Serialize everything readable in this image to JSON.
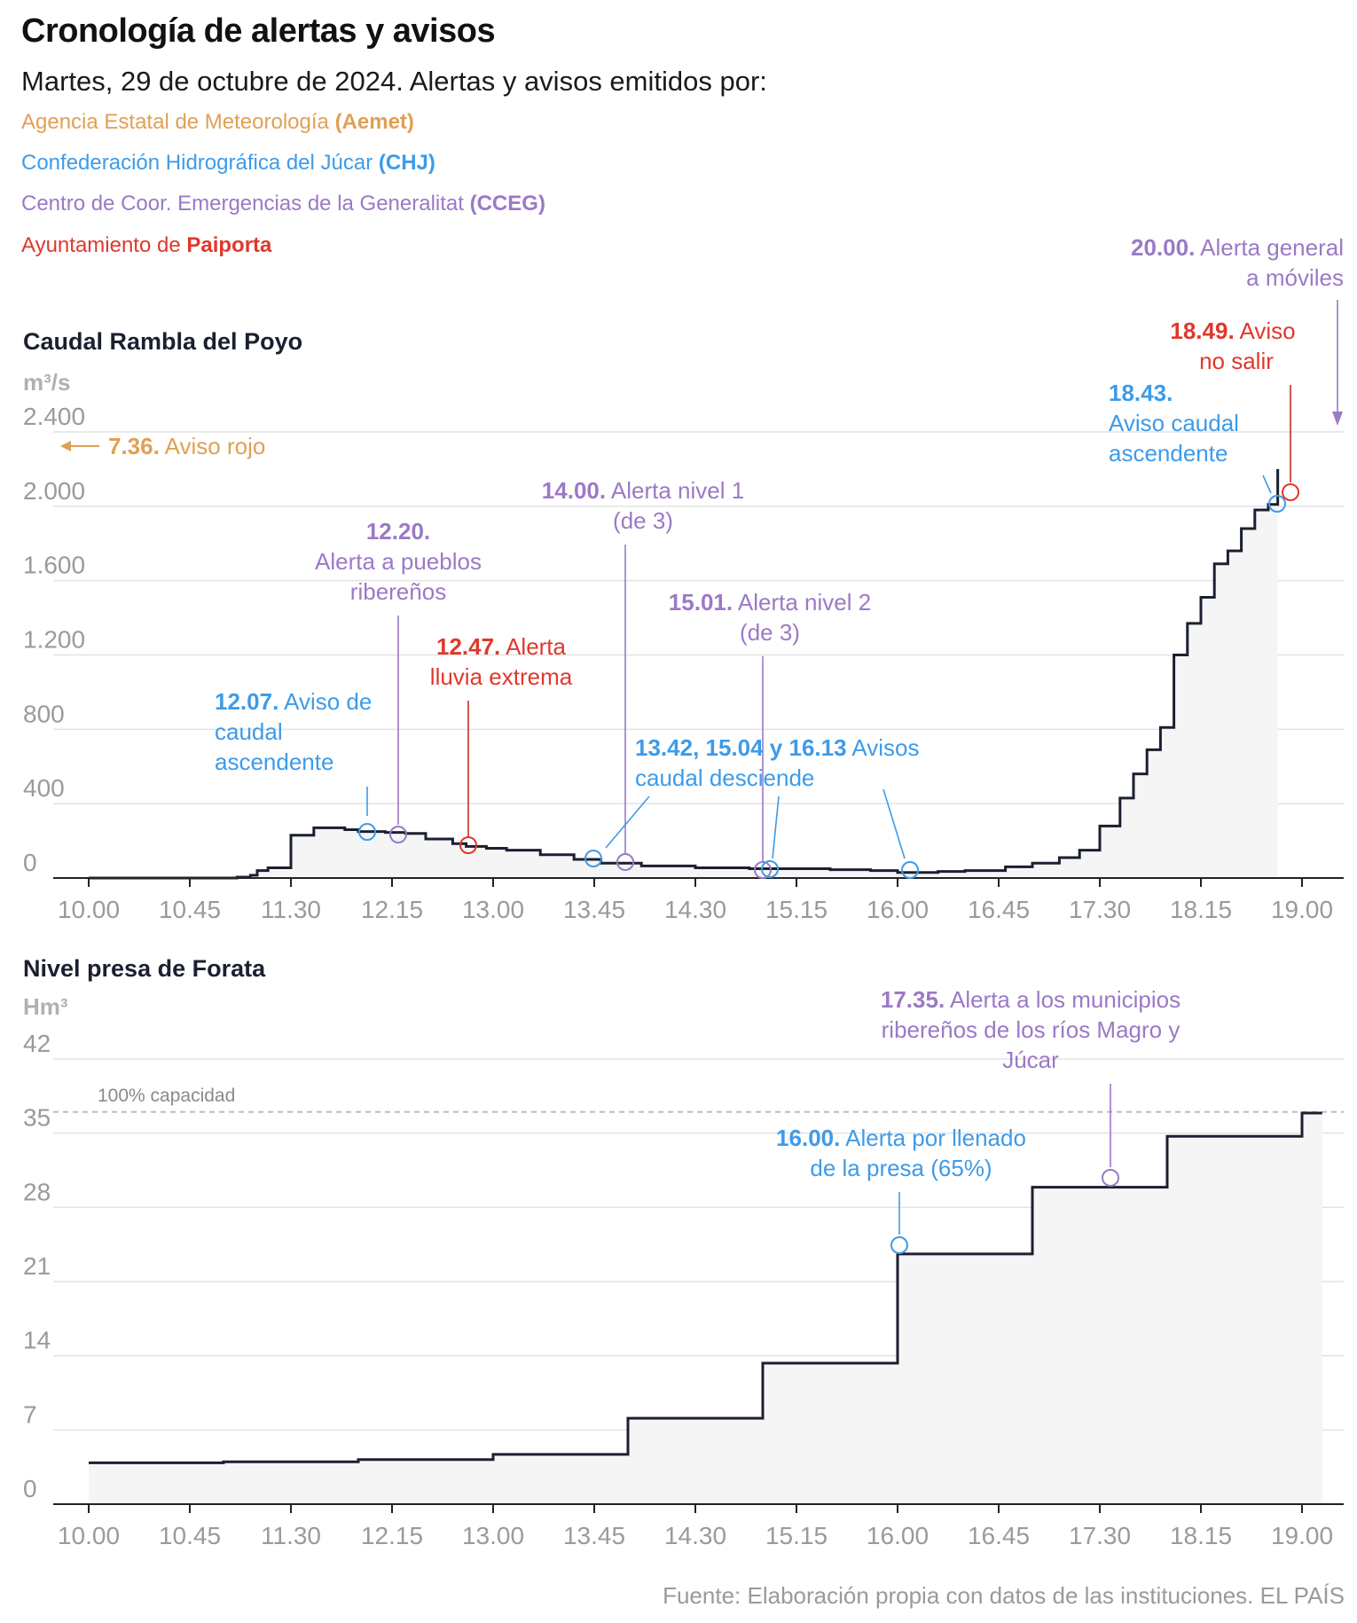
{
  "header": {
    "title": "Cronología de alertas y avisos",
    "subtitle": "Martes, 29 de octubre de 2024. Alertas y avisos emitidos por:"
  },
  "legend": [
    {
      "name": "Agencia Estatal de Meteorología ",
      "abbr": "(Aemet)",
      "color": "#e0a055"
    },
    {
      "name": "Confederación Hidrográfica del Júcar ",
      "abbr": "(CHJ)",
      "color": "#3d9be9"
    },
    {
      "name": "Centro de Coor. Emergencias de la Generalitat ",
      "abbr": "(CCEG)",
      "color": "#9b79c6"
    },
    {
      "name": "Ayuntamiento de ",
      "abbr": "Paiporta",
      "color": "#e0382b"
    }
  ],
  "colors": {
    "aemet": "#e0a055",
    "chj": "#3d9be9",
    "cceg": "#9b79c6",
    "paiporta": "#e0382b",
    "line": "#1a2030"
  },
  "chart_data": [
    {
      "type": "line",
      "title": "Caudal Rambla del Poyo",
      "ylabel": "m³/s",
      "x_unit": "hour",
      "xlim": [
        10.0,
        19.6
      ],
      "ylim": [
        0,
        2400
      ],
      "yticks": [
        0,
        400,
        800,
        1200,
        1600,
        2000,
        2400
      ],
      "ytick_labels": [
        "0",
        "400",
        "800",
        "1.200",
        "1.600",
        "2.000",
        "2.400"
      ],
      "xtick_labels": [
        "10.00",
        "10.45",
        "11.30",
        "12.15",
        "13.00",
        "13.45",
        "14.30",
        "15.15",
        "16.00",
        "16.45",
        "17.30",
        "18.15",
        "19.00"
      ],
      "grid": true,
      "series": [
        {
          "x": [
            10.0,
            11.1,
            11.2,
            11.25,
            11.33,
            11.5,
            11.67,
            11.9,
            12.0,
            12.2,
            12.35,
            12.5,
            12.7,
            12.8,
            12.95,
            13.1,
            13.35,
            13.6,
            13.8,
            14.1,
            14.5,
            14.9,
            15.0,
            15.5,
            15.8,
            16.0,
            16.1,
            16.3,
            16.5,
            16.8,
            17.0,
            17.2,
            17.35,
            17.5,
            17.65,
            17.75,
            17.85,
            17.95,
            18.05,
            18.15,
            18.25,
            18.35,
            18.45,
            18.55,
            18.65,
            18.75,
            18.82
          ],
          "y": [
            0,
            5,
            15,
            40,
            55,
            230,
            270,
            260,
            250,
            245,
            240,
            210,
            185,
            170,
            160,
            150,
            125,
            100,
            80,
            65,
            55,
            50,
            50,
            45,
            40,
            30,
            30,
            35,
            40,
            60,
            80,
            110,
            150,
            280,
            430,
            560,
            690,
            810,
            1200,
            1370,
            1510,
            1690,
            1760,
            1880,
            1980,
            2010,
            2200
          ],
          "step": true
        }
      ],
      "annotations": [
        {
          "time": "7.36.",
          "text": " Aviso rojo",
          "agency": "aemet"
        },
        {
          "time": "12.07.",
          "text": " Aviso de caudal ascendente",
          "agency": "chj"
        },
        {
          "time": "12.20.",
          "text": " Alerta a pueblos ribereños",
          "agency": "cceg"
        },
        {
          "time": "12.47.",
          "text": " Alerta lluvia extrema",
          "agency": "paiporta"
        },
        {
          "time": "14.00.",
          "text": " Alerta nivel 1 (de 3)",
          "agency": "cceg"
        },
        {
          "time": "15.01.",
          "text": " Alerta nivel 2 (de 3)",
          "agency": "cceg"
        },
        {
          "time": "13.42, 15.04 y 16.13",
          "text": " Avisos caudal desciende",
          "agency": "chj"
        },
        {
          "time": "18.43.",
          "text": " Aviso caudal ascendente",
          "agency": "chj"
        },
        {
          "time": "18.49.",
          "text": " Aviso no salir",
          "agency": "paiporta"
        },
        {
          "time": "20.00.",
          "text": " Alerta general a móviles",
          "agency": "cceg"
        }
      ]
    },
    {
      "type": "line",
      "title": "Nivel presa de Forata",
      "ylabel": "Hm³",
      "xlim": [
        10.0,
        19.6
      ],
      "ylim": [
        0,
        42
      ],
      "yticks": [
        0,
        7,
        14,
        21,
        28,
        35,
        42
      ],
      "ytick_labels": [
        "0",
        "7",
        "14",
        "21",
        "28",
        "35",
        "42"
      ],
      "xtick_labels": [
        "10.00",
        "10.45",
        "11.30",
        "12.15",
        "13.00",
        "13.45",
        "14.30",
        "15.15",
        "16.00",
        "16.45",
        "17.30",
        "18.15",
        "19.00"
      ],
      "grid": true,
      "reference_line": {
        "y": 37,
        "label": "100% capacidad"
      },
      "series": [
        {
          "x": [
            10.0,
            11.0,
            12.0,
            13.0,
            14.0,
            15.0,
            16.0,
            17.0,
            18.0,
            19.0,
            19.15
          ],
          "y": [
            3.9,
            4.0,
            4.2,
            4.7,
            8.1,
            13.3,
            23.6,
            29.9,
            34.7,
            36.9,
            36.9
          ],
          "step": true
        }
      ],
      "annotations": [
        {
          "time": "16.00.",
          "text": " Alerta por llenado de la presa (65%)",
          "agency": "chj"
        },
        {
          "time": "17.35.",
          "text": " Alerta a los municipios ribereños de los ríos Magro y Júcar",
          "agency": "cceg"
        }
      ]
    }
  ],
  "chart_labels": {
    "ann1_a": "7.36.",
    "ann1_b": " Aviso rojo",
    "ann2_a": "12.07.",
    "ann2_b": " Aviso de",
    "ann2_c": "caudal",
    "ann2_d": "ascendente",
    "ann3_a": "12.20.",
    "ann3_b": "Alerta a pueblos",
    "ann3_c": "ribereños",
    "ann4_a": "12.47.",
    "ann4_b": " Alerta",
    "ann4_c": "lluvia extrema",
    "ann5_a": "14.00.",
    "ann5_b": " Alerta nivel 1",
    "ann5_c": "(de 3)",
    "ann6_a": "15.01.",
    "ann6_b": " Alerta nivel 2",
    "ann6_c": "(de 3)",
    "ann7_a": "13.42, 15.04 y 16.13",
    "ann7_b": " Avisos",
    "ann7_c": "caudal desciende",
    "ann8_a": "18.43.",
    "ann8_b": "Aviso caudal",
    "ann8_c": "ascendente",
    "ann9_a": "18.49.",
    "ann9_b": " Aviso",
    "ann9_c": "no salir",
    "ann10_a": "20.00.",
    "ann10_b": " Alerta general",
    "ann10_c": "a móviles",
    "annB1_a": "16.00.",
    "annB1_b": " Alerta por llenado",
    "annB1_c": "de la presa (65%)",
    "annB2_a": "17.35.",
    "annB2_b": " Alerta a los municipios",
    "annB2_c": "ribereños de los ríos Magro y",
    "annB2_d": "Júcar",
    "ref_label": "100% capacidad"
  },
  "footer": {
    "source": "Fuente: Elaboración propia con datos de las instituciones. EL PAÍS"
  }
}
